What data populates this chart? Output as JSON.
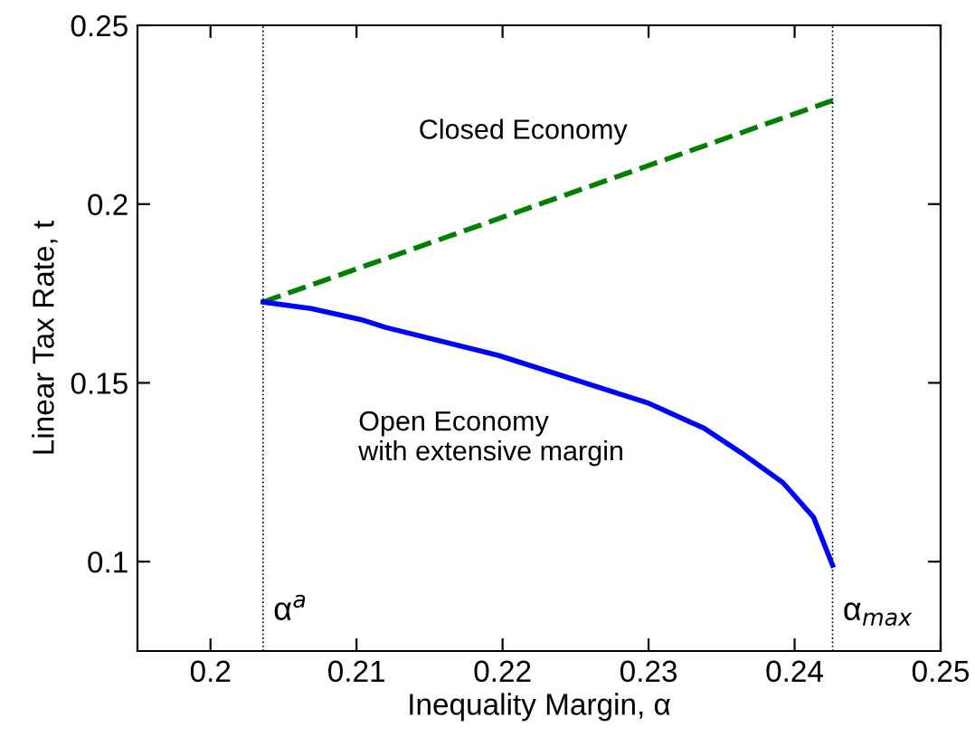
{
  "chart_data": {
    "type": "line",
    "xlabel": "Inequality Margin, α",
    "ylabel": "Linear Tax Rate, t",
    "xlim": [
      0.195,
      0.25
    ],
    "ylim": [
      0.075,
      0.25
    ],
    "xticks": [
      0.2,
      0.21,
      0.22,
      0.23,
      0.24,
      0.25
    ],
    "yticks": [
      0.1,
      0.15,
      0.2,
      0.25
    ],
    "grid": false,
    "legend": false,
    "series": [
      {
        "name": "Closed Economy",
        "color": "#008000",
        "line_style": "dashed",
        "x": [
          0.2036,
          0.2426
        ],
        "values": [
          0.1726,
          0.229
        ]
      },
      {
        "name": "Open Economy\nwith extensive margin",
        "color": "#0000ff",
        "line_style": "solid",
        "x": [
          0.2036,
          0.2069,
          0.2103,
          0.212,
          0.2197,
          0.23,
          0.2338,
          0.2364,
          0.2392,
          0.2413,
          0.2426
        ],
        "values": [
          0.1726,
          0.1708,
          0.1677,
          0.1655,
          0.1577,
          0.1443,
          0.1373,
          0.1303,
          0.1221,
          0.1124,
          0.099
        ]
      }
    ],
    "ref_lines": [
      {
        "axis": "x",
        "value": 0.2036,
        "label": "α$^{a}$",
        "color": "#000000",
        "line_style": "dotted"
      },
      {
        "axis": "x",
        "value": 0.2426,
        "label": "α$_{max}$",
        "color": "#000000",
        "line_style": "dotted"
      }
    ]
  }
}
